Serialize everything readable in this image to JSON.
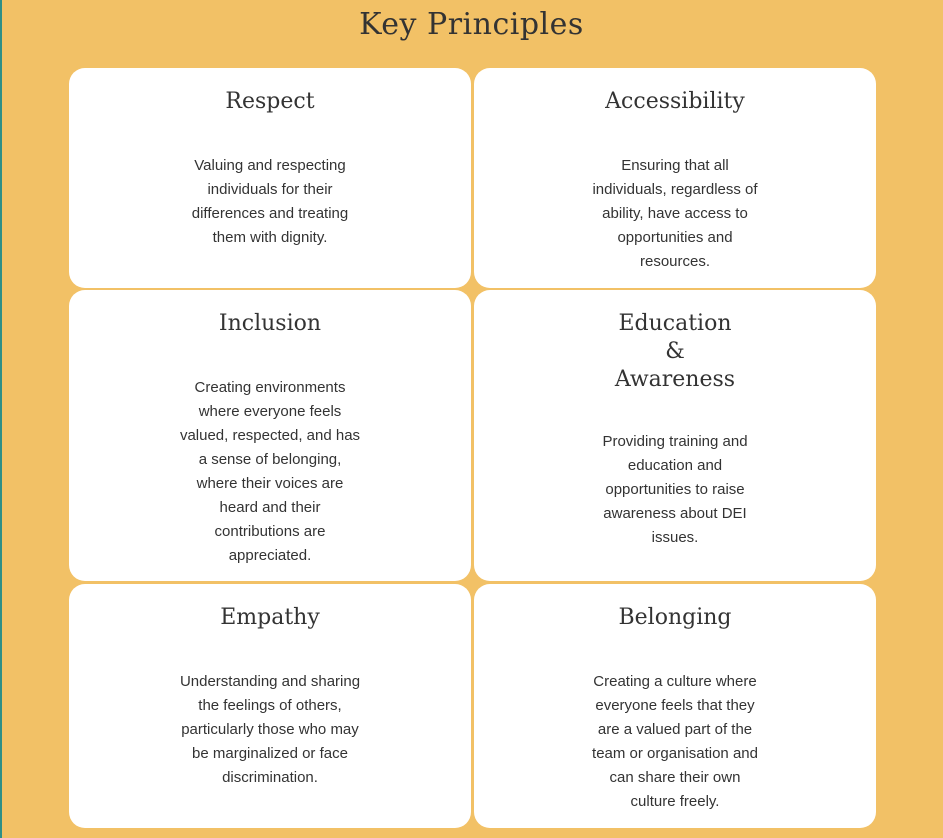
{
  "page": {
    "title": "Key Principles"
  },
  "cards": [
    {
      "title": "Respect",
      "description": "Valuing and respecting individuals for their differences and treating them with dignity."
    },
    {
      "title": "Accessibility",
      "description": "Ensuring that all individuals, regardless of ability, have access to opportunities and resources."
    },
    {
      "title": "Inclusion",
      "description": "Creating environments where everyone feels valued, respected, and has a sense of belonging, where their voices are heard and their contributions are appreciated."
    },
    {
      "title_lines": [
        "Education",
        "&",
        "Awareness"
      ],
      "description": "Providing training and education and opportunities to raise awareness about DEI issues."
    },
    {
      "title": "Empathy",
      "description": "Understanding and sharing the feelings of others, particularly those who may be marginalized or face discrimination."
    },
    {
      "title": "Belonging",
      "description": "Creating a culture where everyone feels that they are a valued part of the team or organisation and can share their own culture freely."
    }
  ],
  "colors": {
    "background": "#f2c166",
    "card": "#ffffff",
    "text": "#333333",
    "left_edge": "#2f8f86"
  }
}
